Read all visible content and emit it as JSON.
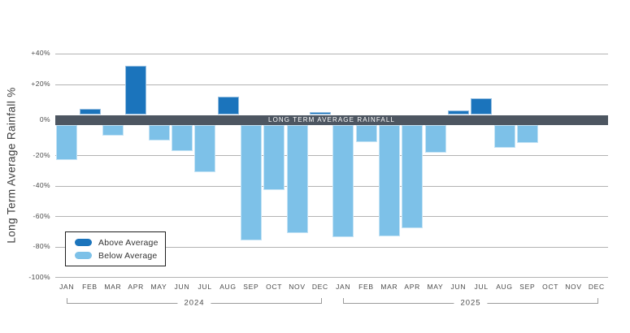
{
  "colors": {
    "above": "#1b74bc",
    "below": "#7dc1e8",
    "zero_band": "#4d5661",
    "gridline": "#b3b3b3"
  },
  "y_axis": {
    "title": "Long Term Average Rainfall %",
    "ticks": [
      {
        "label": "+40%",
        "value": 40
      },
      {
        "label": "+20%",
        "value": 20
      },
      {
        "label": "0%",
        "value": 0
      },
      {
        "label": "-20%",
        "value": -20
      },
      {
        "label": "-40%",
        "value": -40
      },
      {
        "label": "-60%",
        "value": -60
      },
      {
        "label": "-80%",
        "value": -80
      },
      {
        "label": "-100%",
        "value": -100
      }
    ]
  },
  "zero_band": {
    "label": "LONG TERM AVERAGE RAINFALL"
  },
  "legend": {
    "items": [
      {
        "label": "Above Average",
        "color_key": "above"
      },
      {
        "label": "Below Average",
        "color_key": "below"
      }
    ]
  },
  "chart_data": {
    "type": "bar",
    "title": "",
    "xlabel": "",
    "ylabel": "Long Term Average Rainfall %",
    "ylim": [
      -100,
      40
    ],
    "grid": "horizontal",
    "legend_position": "bottom-left-inside",
    "categories": [
      "JAN",
      "FEB",
      "MAR",
      "APR",
      "MAY",
      "JUN",
      "JUL",
      "AUG",
      "SEP",
      "OCT",
      "NOV",
      "DEC",
      "JAN",
      "FEB",
      "MAR",
      "APR",
      "MAY",
      "JUN",
      "JUL",
      "AUG",
      "SEP",
      "OCT",
      "NOV",
      "DEC"
    ],
    "year_groups": [
      {
        "label": "2024",
        "start_index": 0,
        "end_index": 11
      },
      {
        "label": "2025",
        "start_index": 12,
        "end_index": 23
      }
    ],
    "series": [
      {
        "name": "Long Term Average Rainfall %",
        "values": [
          -23,
          4,
          -7,
          32,
          -10,
          -17,
          -31,
          12,
          -76,
          -43,
          -71,
          2,
          -74,
          -11,
          -73,
          -68,
          -18,
          3,
          11,
          -15,
          -12,
          null,
          null,
          null
        ]
      }
    ],
    "zero_band_label": "LONG TERM AVERAGE RAINFALL",
    "color_rule": "positive bars dark blue (above average), negative bars light blue (below average)"
  }
}
